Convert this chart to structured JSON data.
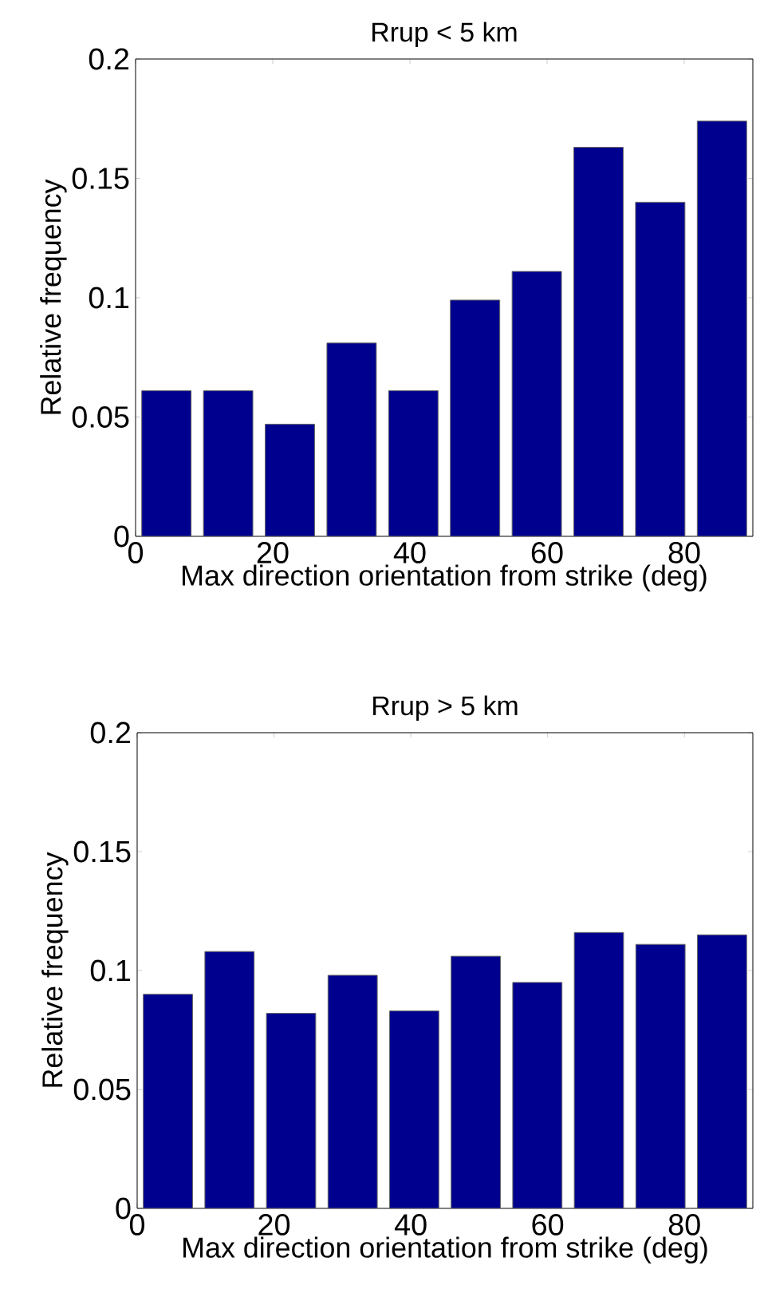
{
  "chart_data": [
    {
      "type": "histogram",
      "title": "Rrup < 5 km",
      "xlabel": "Max direction orientation from strike (deg)",
      "ylabel": "Relative frequency",
      "bins": [
        0,
        9,
        18,
        27,
        36,
        45,
        54,
        63,
        72,
        81,
        90
      ],
      "values": [
        0.061,
        0.061,
        0.047,
        0.081,
        0.061,
        0.099,
        0.111,
        0.163,
        0.14,
        0.174
      ],
      "color": "#00008f",
      "xlim": [
        0,
        90
      ],
      "ylim": [
        0,
        0.2
      ],
      "xticks": [
        0,
        20,
        40,
        60,
        80
      ],
      "yticks": [
        0,
        0.05,
        0.1,
        0.15,
        0.2
      ]
    },
    {
      "type": "histogram",
      "title": "Rrup > 5 km",
      "xlabel": "Max direction orientation from strike (deg)",
      "ylabel": "Relative frequency",
      "bins": [
        0,
        9,
        18,
        27,
        36,
        45,
        54,
        63,
        72,
        81,
        90
      ],
      "values": [
        0.09,
        0.108,
        0.082,
        0.098,
        0.083,
        0.106,
        0.095,
        0.116,
        0.111,
        0.115
      ],
      "color": "#00008f",
      "xlim": [
        0,
        90
      ],
      "ylim": [
        0,
        0.2
      ],
      "xticks": [
        0,
        20,
        40,
        60,
        80
      ],
      "yticks": [
        0,
        0.05,
        0.1,
        0.15,
        0.2
      ]
    }
  ]
}
